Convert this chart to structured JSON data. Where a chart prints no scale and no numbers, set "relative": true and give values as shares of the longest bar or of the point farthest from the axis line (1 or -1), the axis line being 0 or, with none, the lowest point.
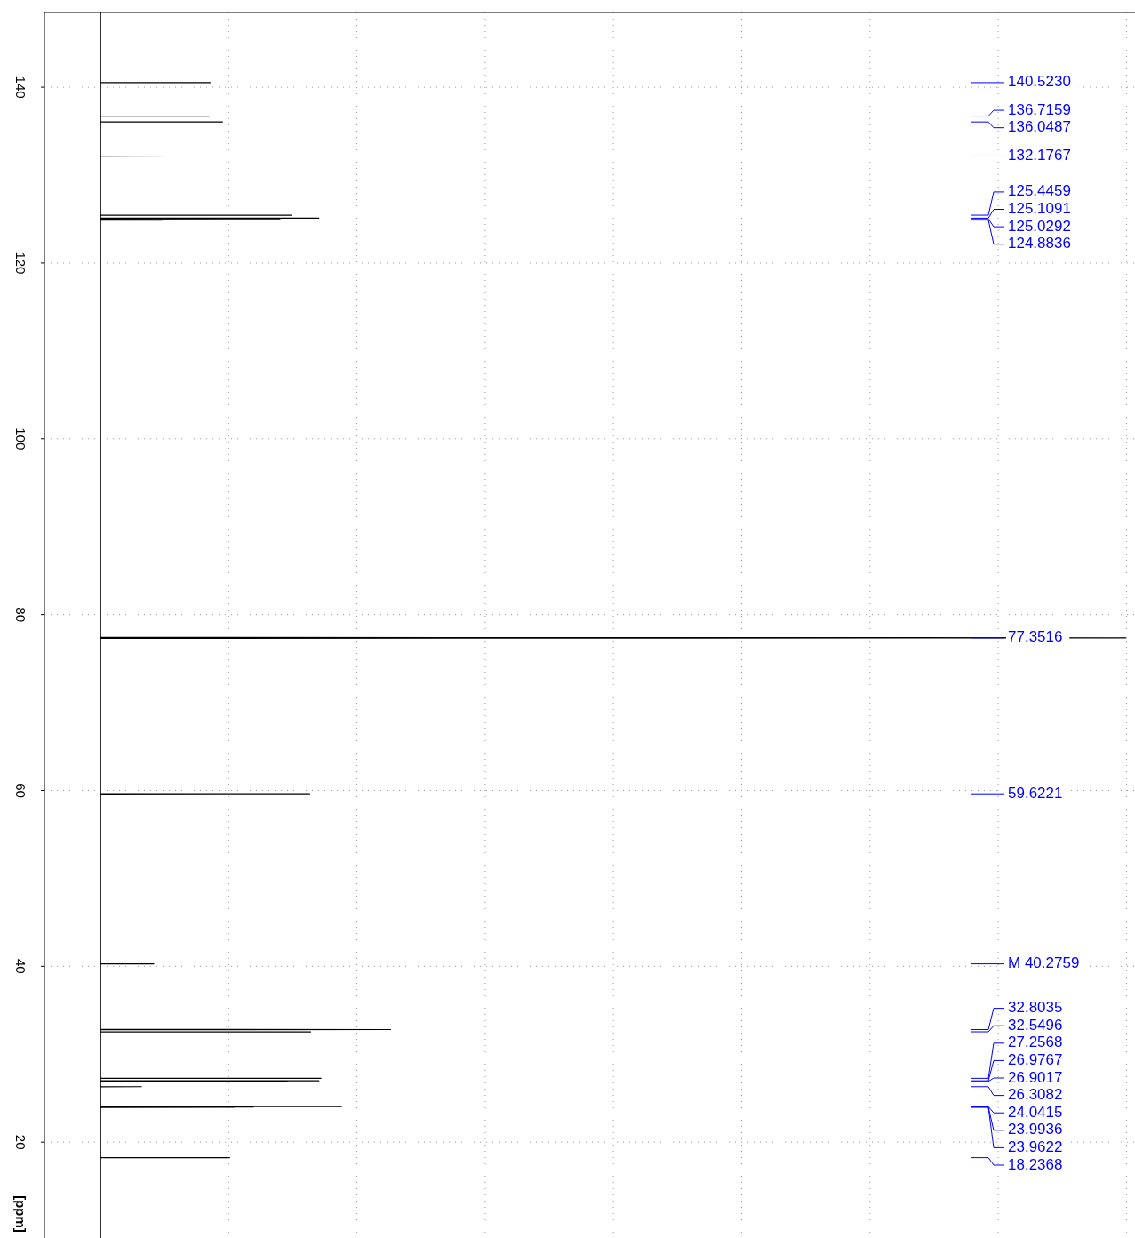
{
  "chart_data": {
    "type": "line",
    "orientation": "horizontal",
    "relative": true,
    "ylabel": "[ppm]",
    "ylim": [
      9.1,
      148.5
    ],
    "yticks": [
      140,
      120,
      100,
      80,
      60,
      40,
      20
    ],
    "grid": true,
    "tick_labels": "y",
    "x": [
      148.5,
      140.533,
      140.523,
      140.513,
      136.7259,
      136.7159,
      136.7059,
      136.0587,
      136.0487,
      136.0387,
      132.1867,
      132.1767,
      132.1667,
      125.4559,
      125.4459,
      125.4359,
      125.1191,
      125.1091,
      125.0991,
      125.0392,
      125.0292,
      125.0192,
      124.8936,
      124.8836,
      124.8736,
      77.4,
      77.3516,
      77.3,
      59.6321,
      59.6221,
      59.6121,
      40.2859,
      40.2759,
      40.2659,
      32.8135,
      32.8035,
      32.7935,
      32.5596,
      32.5496,
      32.5396,
      27.2668,
      27.2568,
      27.2468,
      26.9867,
      26.9767,
      26.9667,
      26.9117,
      26.9017,
      26.8917,
      26.3182,
      26.3082,
      26.2982,
      24.0515,
      24.0415,
      24.0315,
      24.0036,
      23.9936,
      23.9836,
      23.9722,
      23.9622,
      23.9522,
      18.2468,
      18.2368,
      18.2268,
      9.1
    ],
    "series": [
      {
        "color": "#000000",
        "values": [
          0,
          0,
          0.107,
          0,
          0,
          0.106,
          0,
          0,
          0.119,
          0,
          0,
          0.072,
          0,
          0,
          0.186,
          0,
          0,
          0.213,
          0,
          0,
          0.175,
          0,
          0,
          0.06,
          0,
          0,
          1,
          0,
          0,
          0.204,
          0,
          0,
          0.052,
          0,
          0,
          0.283,
          0,
          0,
          0.205,
          0,
          0,
          0.215,
          0,
          0,
          0.213,
          0,
          0,
          0.182,
          0,
          0,
          0.04,
          0,
          0,
          0.235,
          0,
          0,
          0.149,
          0,
          0,
          0.13,
          0,
          0,
          0.126,
          0,
          0
        ]
      }
    ],
    "annotations": [
      "140.5230",
      "136.7159",
      "136.0487",
      "132.1767",
      "125.4459",
      "125.1091",
      "125.0292",
      "124.8836",
      "77.3516",
      "59.6221",
      "M 40.2759",
      "32.8035",
      "32.5496",
      "27.2568",
      "26.9767",
      "26.9017",
      "26.3082",
      "24.0415",
      "23.9936",
      "23.9622",
      "18.2368"
    ]
  }
}
